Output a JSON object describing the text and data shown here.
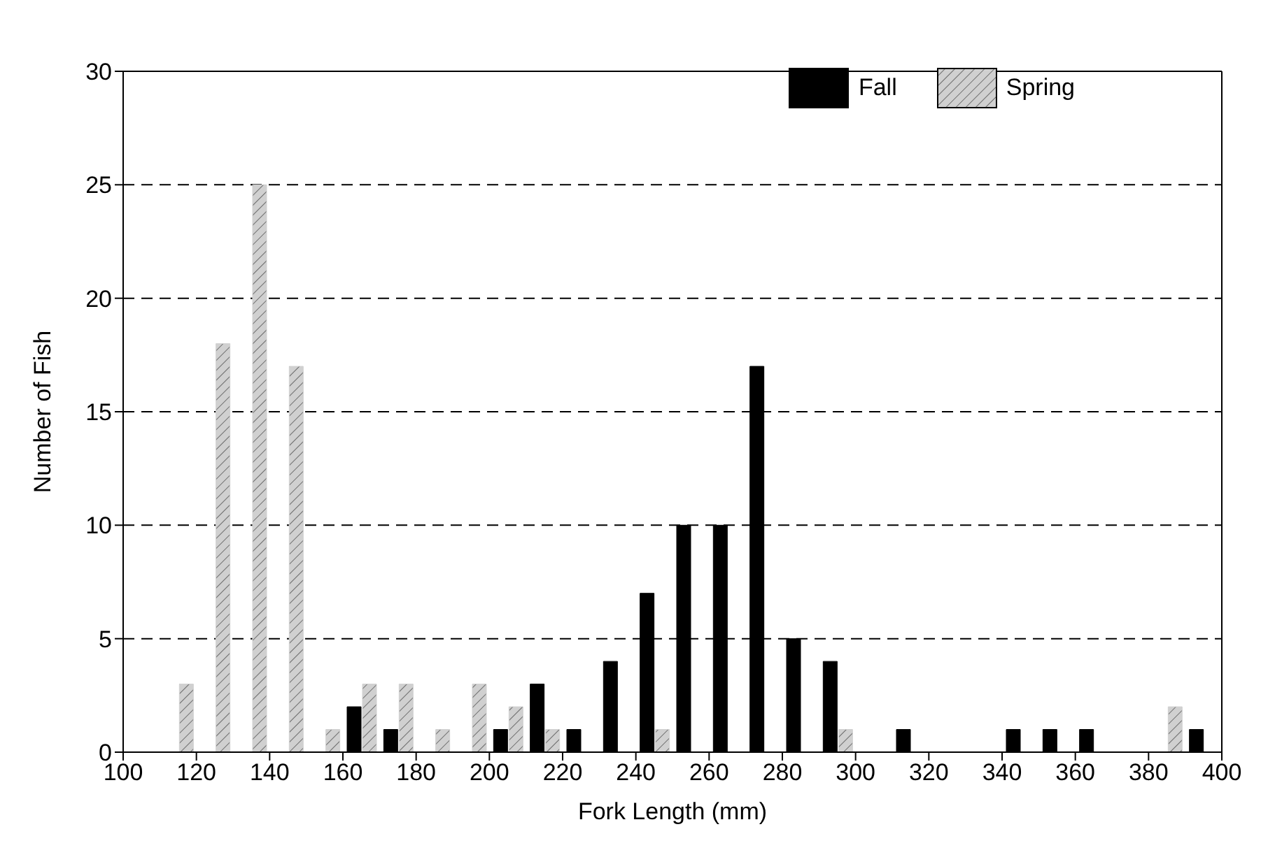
{
  "chart_data": {
    "type": "bar",
    "xlabel": "Fork Length (mm)",
    "ylabel": "Number of Fish",
    "x": [
      115,
      125,
      135,
      145,
      155,
      165,
      175,
      185,
      195,
      205,
      215,
      225,
      235,
      245,
      255,
      265,
      275,
      285,
      295,
      305,
      315,
      325,
      335,
      345,
      355,
      365,
      375,
      385,
      395
    ],
    "series": [
      {
        "name": "Fall",
        "color": "#000000",
        "values": [
          0,
          0,
          0,
          0,
          0,
          2,
          1,
          0,
          0,
          1,
          3,
          1,
          4,
          7,
          10,
          10,
          17,
          5,
          4,
          0,
          1,
          0,
          0,
          1,
          1,
          1,
          0,
          0,
          1
        ]
      },
      {
        "name": "Spring",
        "color": "#d0d0d0",
        "values": [
          3,
          18,
          25,
          17,
          1,
          3,
          3,
          1,
          3,
          2,
          1,
          0,
          0,
          1,
          0,
          0,
          0,
          0,
          1,
          0,
          0,
          0,
          0,
          0,
          0,
          0,
          0,
          2,
          0
        ]
      }
    ],
    "xlim": [
      100,
      400
    ],
    "xticks": [
      100,
      120,
      140,
      160,
      180,
      200,
      220,
      240,
      260,
      280,
      300,
      320,
      340,
      360,
      380,
      400
    ],
    "ylim": [
      0,
      30
    ],
    "yticks": [
      0,
      5,
      10,
      15,
      20,
      25,
      30
    ],
    "grid": "y",
    "legend": "top right"
  }
}
